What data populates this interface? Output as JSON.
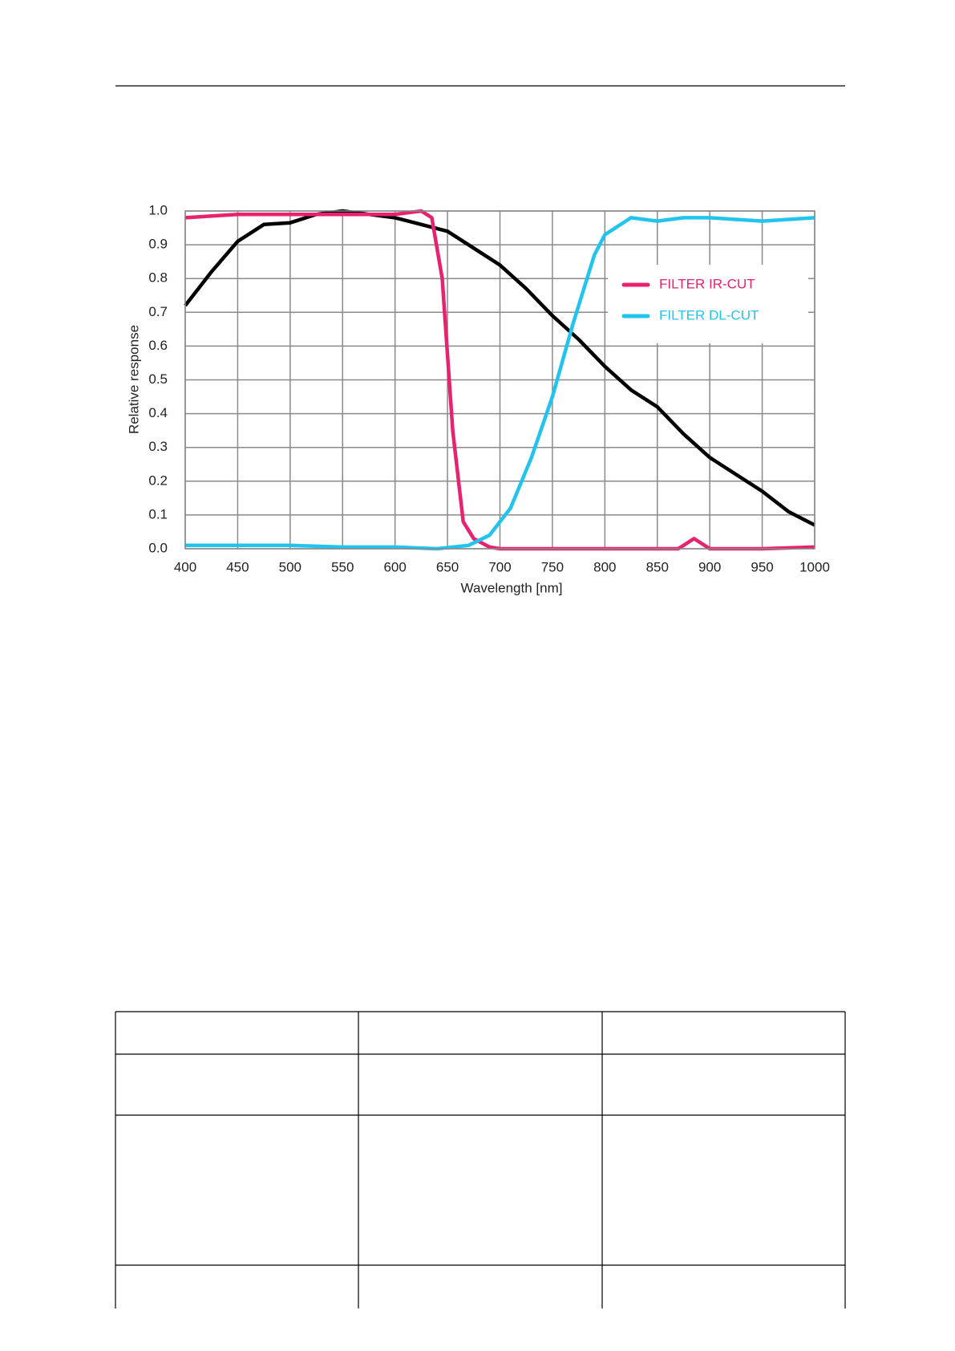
{
  "chart_data": {
    "type": "line",
    "xlabel": "Wavelength [nm]",
    "ylabel": "Relative response",
    "xlim": [
      400,
      1000
    ],
    "ylim": [
      0,
      1
    ],
    "xticks": [
      400,
      450,
      500,
      550,
      600,
      650,
      700,
      750,
      800,
      850,
      900,
      950,
      1000
    ],
    "yticks": [
      {
        "value": 0,
        "label": "0.0"
      },
      0.1,
      0.2,
      0.3,
      0.4,
      0.5,
      0.6,
      0.7,
      0.8,
      0.9,
      {
        "value": 1,
        "label": "1.0"
      }
    ],
    "grid": true,
    "legend": "upper right",
    "series": [
      {
        "color": "#000000",
        "x": [
          400,
          425,
          450,
          475,
          500,
          525,
          550,
          575,
          600,
          625,
          650,
          675,
          700,
          725,
          750,
          775,
          800,
          825,
          850,
          875,
          900,
          925,
          950,
          975,
          1000
        ],
        "values": [
          0.72,
          0.82,
          0.91,
          0.96,
          0.965,
          0.99,
          1.0,
          0.99,
          0.98,
          0.96,
          0.94,
          0.89,
          0.84,
          0.77,
          0.69,
          0.62,
          0.54,
          0.47,
          0.42,
          0.34,
          0.27,
          0.22,
          0.17,
          0.11,
          0.07
        ]
      },
      {
        "name": "FILTER IR-CUT",
        "color": "#e8226e",
        "x": [
          400,
          450,
          500,
          550,
          600,
          625,
          635,
          645,
          655,
          665,
          675,
          690,
          700,
          800,
          870,
          885,
          900,
          950,
          1000
        ],
        "values": [
          0.98,
          0.99,
          0.99,
          0.99,
          0.99,
          1.0,
          0.98,
          0.8,
          0.35,
          0.08,
          0.03,
          0.005,
          0,
          0,
          0,
          0.03,
          0,
          0,
          0.005
        ]
      },
      {
        "name": "FILTER DL-CUT",
        "color": "#22c4ee",
        "x": [
          400,
          500,
          550,
          600,
          640,
          670,
          690,
          710,
          730,
          750,
          770,
          790,
          800,
          825,
          850,
          875,
          900,
          950,
          1000
        ],
        "values": [
          0.01,
          0.01,
          0.005,
          0.005,
          0,
          0.01,
          0.04,
          0.12,
          0.27,
          0.45,
          0.67,
          0.87,
          0.93,
          0.98,
          0.97,
          0.98,
          0.98,
          0.97,
          0.98
        ]
      }
    ]
  }
}
